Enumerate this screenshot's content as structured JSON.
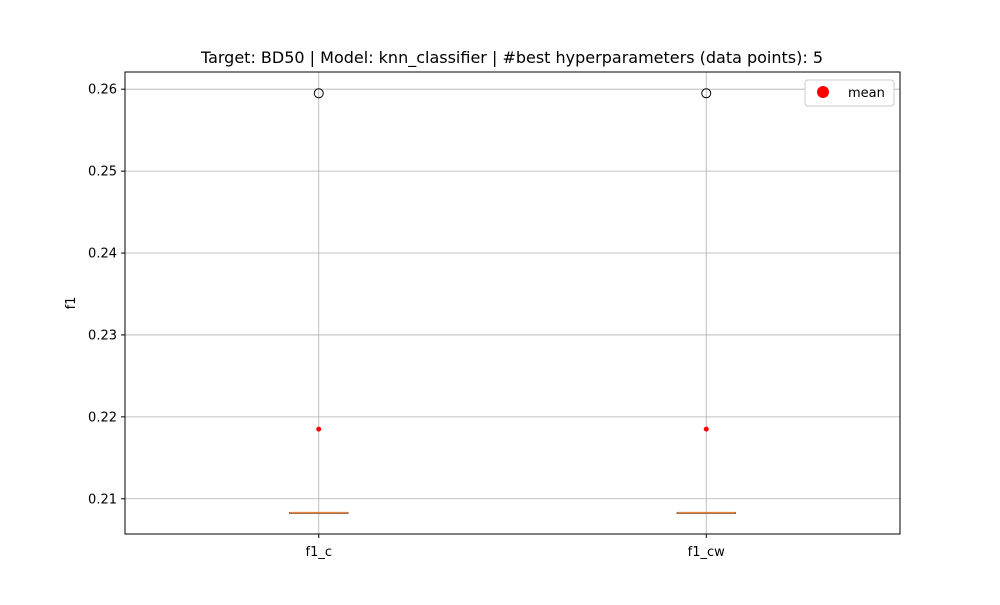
{
  "chart_data": {
    "type": "box",
    "title": "Target: BD50 | Model: knn_classifier | #best hyperparameters (data points): 5",
    "xlabel": "",
    "ylabel": "f1",
    "categories": [
      "f1_c",
      "f1_cw"
    ],
    "ylim": [
      0.2057,
      0.2621
    ],
    "yticks": [
      0.21,
      0.22,
      0.23,
      0.24,
      0.25,
      0.26
    ],
    "ytick_labels": [
      "0.21",
      "0.22",
      "0.23",
      "0.24",
      "0.25",
      "0.26"
    ],
    "grid": true,
    "legend": {
      "position": "top-right",
      "entries": [
        "mean"
      ]
    },
    "series": [
      {
        "category": "f1_c",
        "q1": 0.2083,
        "median": 0.2083,
        "q3": 0.2083,
        "whisker_low": 0.2083,
        "whisker_high": 0.2083,
        "outliers": [
          0.2595
        ],
        "mean": 0.2185
      },
      {
        "category": "f1_cw",
        "q1": 0.2083,
        "median": 0.2083,
        "q3": 0.2083,
        "whisker_low": 0.2083,
        "whisker_high": 0.2083,
        "outliers": [
          0.2595
        ],
        "mean": 0.2185
      }
    ],
    "colors": {
      "box": "#000000",
      "median": "#e1823e",
      "mean": "#ff0000",
      "grid": "#b0b0b0",
      "outlier_edge": "#000000"
    }
  }
}
